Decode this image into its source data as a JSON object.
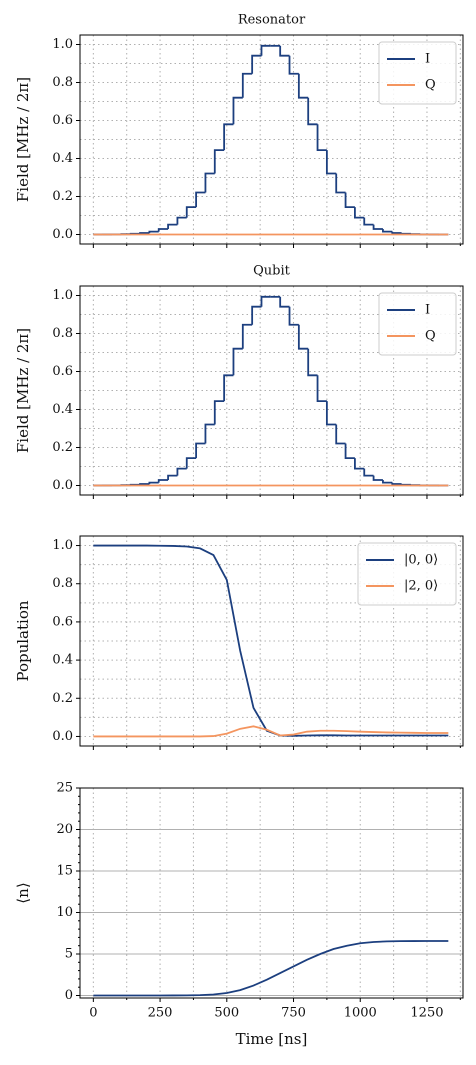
{
  "chart_data": [
    {
      "type": "line",
      "title": "Resonator",
      "ylabel": "Field [MHz / 2π]",
      "x": [
        0,
        35,
        70,
        105,
        140,
        175,
        210,
        245,
        280,
        315,
        350,
        385,
        420,
        455,
        490,
        525,
        560,
        595,
        630,
        665,
        700,
        735,
        770,
        805,
        840,
        875,
        910,
        945,
        980,
        1015,
        1050,
        1085,
        1120,
        1155,
        1190,
        1225,
        1260,
        1295,
        1330
      ],
      "series": [
        {
          "name": "I",
          "color": "#1c3f7f",
          "drawstyle": "steps-post",
          "values": [
            0.0001,
            0.0003,
            0.0007,
            0.0016,
            0.0035,
            0.0075,
            0.015,
            0.029,
            0.052,
            0.089,
            0.144,
            0.221,
            0.321,
            0.444,
            0.58,
            0.72,
            0.846,
            0.941,
            0.993,
            0.993,
            0.941,
            0.846,
            0.72,
            0.58,
            0.444,
            0.321,
            0.221,
            0.144,
            0.089,
            0.052,
            0.029,
            0.015,
            0.0075,
            0.0035,
            0.0016,
            0.0007,
            0.0003,
            0.0001,
            0.0001
          ]
        },
        {
          "name": "Q",
          "color": "#f4955f",
          "values": [
            0,
            0,
            0,
            0,
            0,
            0,
            0,
            0,
            0,
            0,
            0,
            0,
            0,
            0,
            0,
            0,
            0,
            0,
            0,
            0,
            0,
            0,
            0,
            0,
            0,
            0,
            0,
            0,
            0,
            0,
            0,
            0,
            0,
            0,
            0,
            0,
            0,
            0,
            0
          ]
        }
      ],
      "xlim": [
        -50,
        1385
      ],
      "xticks": [
        0,
        250,
        500,
        750,
        1000,
        1250
      ],
      "xminor": [
        125,
        375,
        625,
        875,
        1125,
        1375
      ],
      "ylim": [
        -0.05,
        1.05
      ],
      "yticks": [
        {
          "value": 0,
          "label": "0.0"
        },
        0.2,
        0.4,
        0.6,
        0.8,
        {
          "value": 1,
          "label": "1.0"
        }
      ],
      "yminor": [
        0.1,
        0.3,
        0.5,
        0.7,
        0.9
      ],
      "xgrid": "dotted",
      "ygrid": "dotted",
      "legend": "upper right"
    },
    {
      "type": "line",
      "title": "Qubit",
      "ylabel": "Field [MHz / 2π]",
      "x": [
        0,
        35,
        70,
        105,
        140,
        175,
        210,
        245,
        280,
        315,
        350,
        385,
        420,
        455,
        490,
        525,
        560,
        595,
        630,
        665,
        700,
        735,
        770,
        805,
        840,
        875,
        910,
        945,
        980,
        1015,
        1050,
        1085,
        1120,
        1155,
        1190,
        1225,
        1260,
        1295,
        1330
      ],
      "series": [
        {
          "name": "I",
          "color": "#1c3f7f",
          "drawstyle": "steps-post",
          "values": [
            0.0001,
            0.0003,
            0.0007,
            0.0016,
            0.0035,
            0.0075,
            0.015,
            0.029,
            0.052,
            0.089,
            0.144,
            0.221,
            0.321,
            0.444,
            0.58,
            0.72,
            0.846,
            0.941,
            0.993,
            0.993,
            0.941,
            0.846,
            0.72,
            0.58,
            0.444,
            0.321,
            0.221,
            0.144,
            0.089,
            0.052,
            0.029,
            0.015,
            0.0075,
            0.0035,
            0.0016,
            0.0007,
            0.0003,
            0.0001,
            0.0001
          ]
        },
        {
          "name": "Q",
          "color": "#f4955f",
          "values": [
            0,
            0,
            0,
            0,
            0,
            0,
            0,
            0,
            0,
            0,
            0,
            0,
            0,
            0,
            0,
            0,
            0,
            0,
            0,
            0,
            0,
            0,
            0,
            0,
            0,
            0,
            0,
            0,
            0,
            0,
            0,
            0,
            0,
            0,
            0,
            0,
            0,
            0,
            0
          ]
        }
      ],
      "xlim": [
        -50,
        1385
      ],
      "xticks": [
        0,
        250,
        500,
        750,
        1000,
        1250
      ],
      "xminor": [
        125,
        375,
        625,
        875,
        1125,
        1375
      ],
      "ylim": [
        -0.05,
        1.05
      ],
      "yticks": [
        {
          "value": 0,
          "label": "0.0"
        },
        0.2,
        0.4,
        0.6,
        0.8,
        {
          "value": 1,
          "label": "1.0"
        }
      ],
      "yminor": [
        0.1,
        0.3,
        0.5,
        0.7,
        0.9
      ],
      "xgrid": "dotted",
      "ygrid": "dotted",
      "legend": "upper right"
    },
    {
      "type": "line",
      "ylabel": "Population",
      "x": [
        0,
        50,
        100,
        150,
        200,
        250,
        300,
        350,
        400,
        450,
        500,
        550,
        600,
        650,
        700,
        750,
        800,
        850,
        900,
        950,
        1000,
        1050,
        1100,
        1150,
        1200,
        1250,
        1300,
        1330
      ],
      "series": [
        {
          "name": "|0, 0⟩",
          "color": "#1c3f7f",
          "values": [
            1,
            1,
            1,
            1,
            1,
            0.999,
            0.998,
            0.995,
            0.985,
            0.95,
            0.82,
            0.45,
            0.15,
            0.03,
            0.005,
            0.003,
            0.005,
            0.006,
            0.006,
            0.005,
            0.005,
            0.005,
            0.005,
            0.005,
            0.005,
            0.005,
            0.005,
            0.005
          ]
        },
        {
          "name": "|2, 0⟩",
          "color": "#f4955f",
          "values": [
            0,
            0,
            0,
            0,
            0,
            0,
            0,
            0,
            0,
            0.002,
            0.015,
            0.04,
            0.053,
            0.035,
            0.005,
            0.01,
            0.025,
            0.03,
            0.03,
            0.028,
            0.025,
            0.023,
            0.021,
            0.02,
            0.019,
            0.018,
            0.018,
            0.018
          ]
        }
      ],
      "xlim": [
        -50,
        1385
      ],
      "xticks": [
        0,
        250,
        500,
        750,
        1000,
        1250
      ],
      "xminor": [
        125,
        375,
        625,
        875,
        1125,
        1375
      ],
      "ylim": [
        -0.05,
        1.05
      ],
      "yticks": [
        {
          "value": 0,
          "label": "0.0"
        },
        0.2,
        0.4,
        0.6,
        0.8,
        {
          "value": 1,
          "label": "1.0"
        }
      ],
      "yminor": [
        0.1,
        0.3,
        0.5,
        0.7,
        0.9
      ],
      "xgrid": "dotted",
      "ygrid": "dotted",
      "legend": "upper right"
    },
    {
      "type": "line",
      "ylabel": "⟨n⟩",
      "xlabel": "Time [ns]",
      "x": [
        0,
        50,
        100,
        150,
        200,
        250,
        300,
        350,
        400,
        450,
        500,
        550,
        600,
        650,
        700,
        750,
        800,
        850,
        900,
        950,
        1000,
        1050,
        1100,
        1150,
        1200,
        1250,
        1300,
        1330
      ],
      "series": [
        {
          "color": "#1c3f7f",
          "values": [
            0,
            0,
            0,
            0,
            0,
            0.005,
            0.01,
            0.02,
            0.05,
            0.12,
            0.3,
            0.65,
            1.2,
            1.9,
            2.7,
            3.5,
            4.3,
            5.0,
            5.6,
            6.0,
            6.3,
            6.45,
            6.52,
            6.55,
            6.56,
            6.57,
            6.57,
            6.57
          ]
        }
      ],
      "xlim": [
        -50,
        1385
      ],
      "xticks": [
        0,
        250,
        500,
        750,
        1000,
        1250
      ],
      "xminor": [
        125,
        375,
        625,
        875,
        1125,
        1375
      ],
      "xtick_labels": true,
      "ylim": [
        -0.3,
        25
      ],
      "yticks": [
        0,
        5,
        10,
        15,
        20,
        25
      ],
      "yminor": [
        1,
        2,
        3,
        4,
        6,
        7,
        8,
        9,
        11,
        12,
        13,
        14,
        16,
        17,
        18,
        19,
        21,
        22,
        23,
        24
      ],
      "xgrid": "dotted",
      "ygrid": "solid"
    }
  ]
}
